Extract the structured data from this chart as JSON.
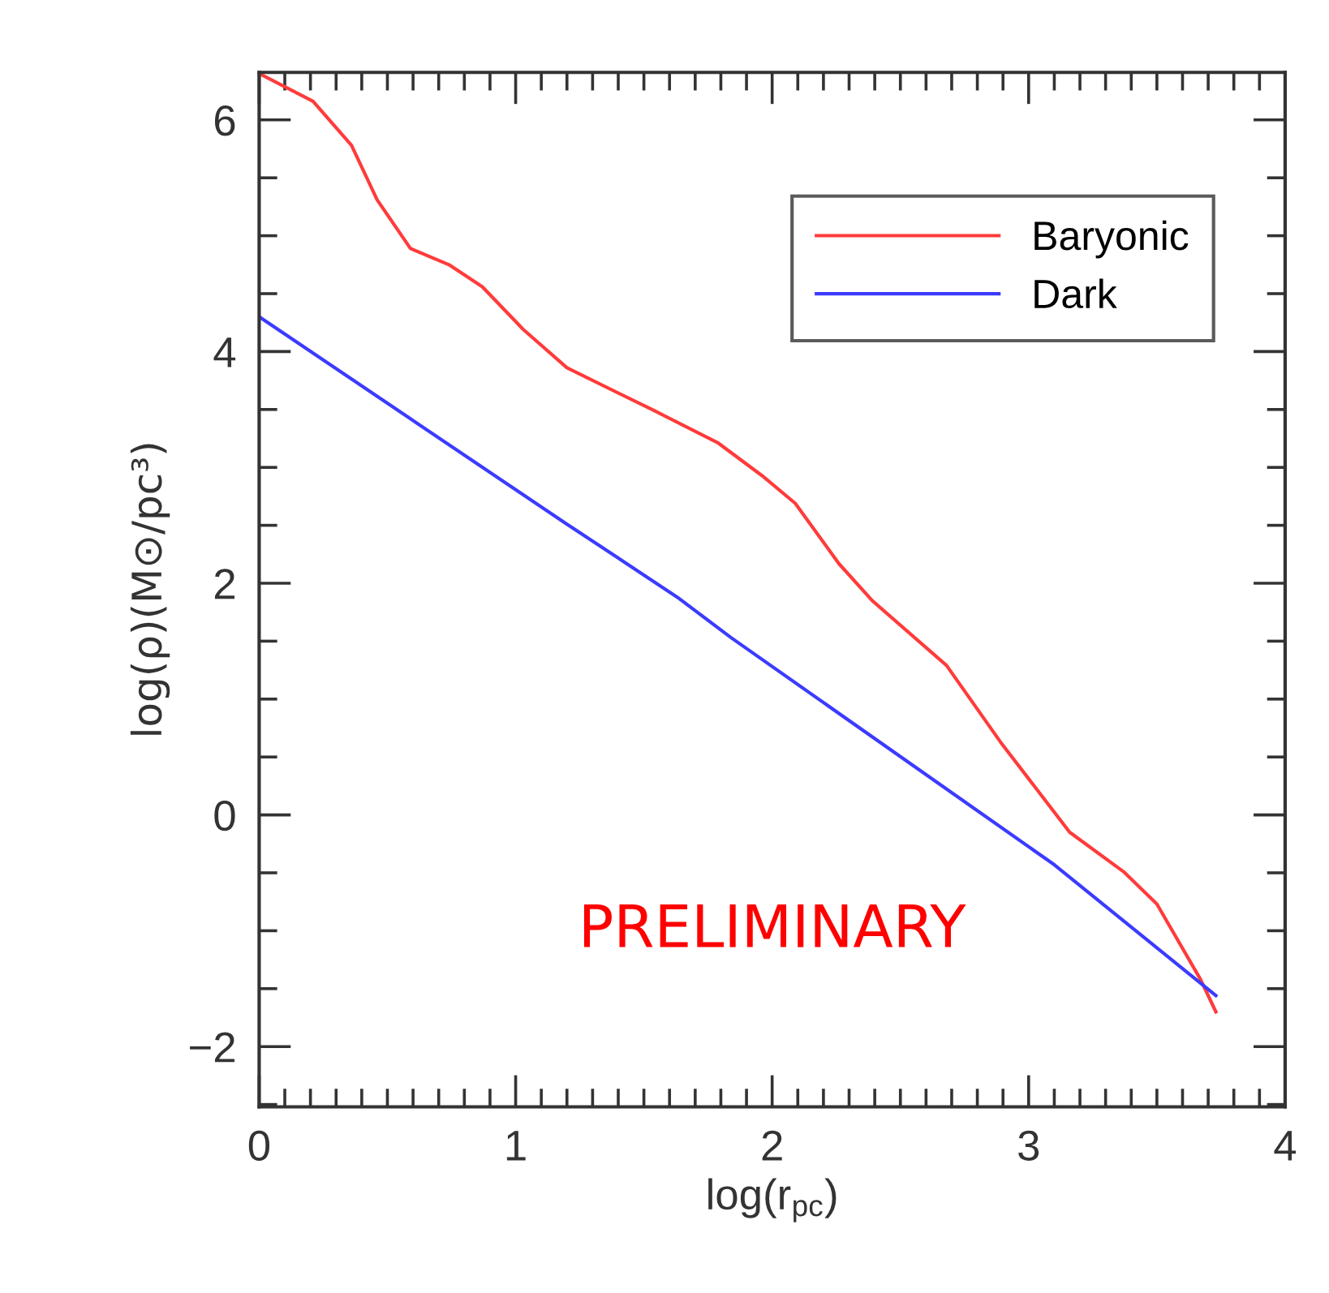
{
  "chart_data": {
    "type": "line",
    "xlabel": "log(r$_{pc}$)",
    "ylabel": "log(ρ)(M⊙/pc³)",
    "xlim": [
      0,
      4
    ],
    "ylim": [
      -2.52,
      6.41
    ],
    "xticks": [
      0,
      1,
      2,
      3,
      4
    ],
    "yticks": [
      -2,
      0,
      2,
      4,
      6
    ],
    "grid": false,
    "legend": "top right",
    "marker": "none",
    "line_style": "solid",
    "annotations": [
      "PRELIMINARY"
    ],
    "series": [
      {
        "name": "Baryonic",
        "color": "#ff3b3b",
        "x": [
          0,
          0.21,
          0.36,
          0.46,
          0.59,
          0.74,
          0.87,
          1.03,
          1.2,
          1.54,
          1.79,
          1.96,
          2.09,
          2.26,
          2.39,
          2.68,
          2.89,
          3.16,
          3.37,
          3.5,
          3.67,
          3.73
        ],
        "values": [
          6.4,
          6.16,
          5.78,
          5.31,
          4.89,
          4.75,
          4.56,
          4.19,
          3.86,
          3.49,
          3.21,
          2.93,
          2.69,
          2.17,
          1.85,
          1.29,
          0.63,
          -0.15,
          -0.49,
          -0.77,
          -1.42,
          -1.7
        ]
      },
      {
        "name": "Dark",
        "color": "#3b3bff",
        "x": [
          0,
          1.2,
          1.63,
          1.84,
          3.1,
          3.73
        ],
        "values": [
          4.3,
          2.51,
          1.88,
          1.53,
          -0.43,
          -1.56
        ]
      }
    ]
  }
}
